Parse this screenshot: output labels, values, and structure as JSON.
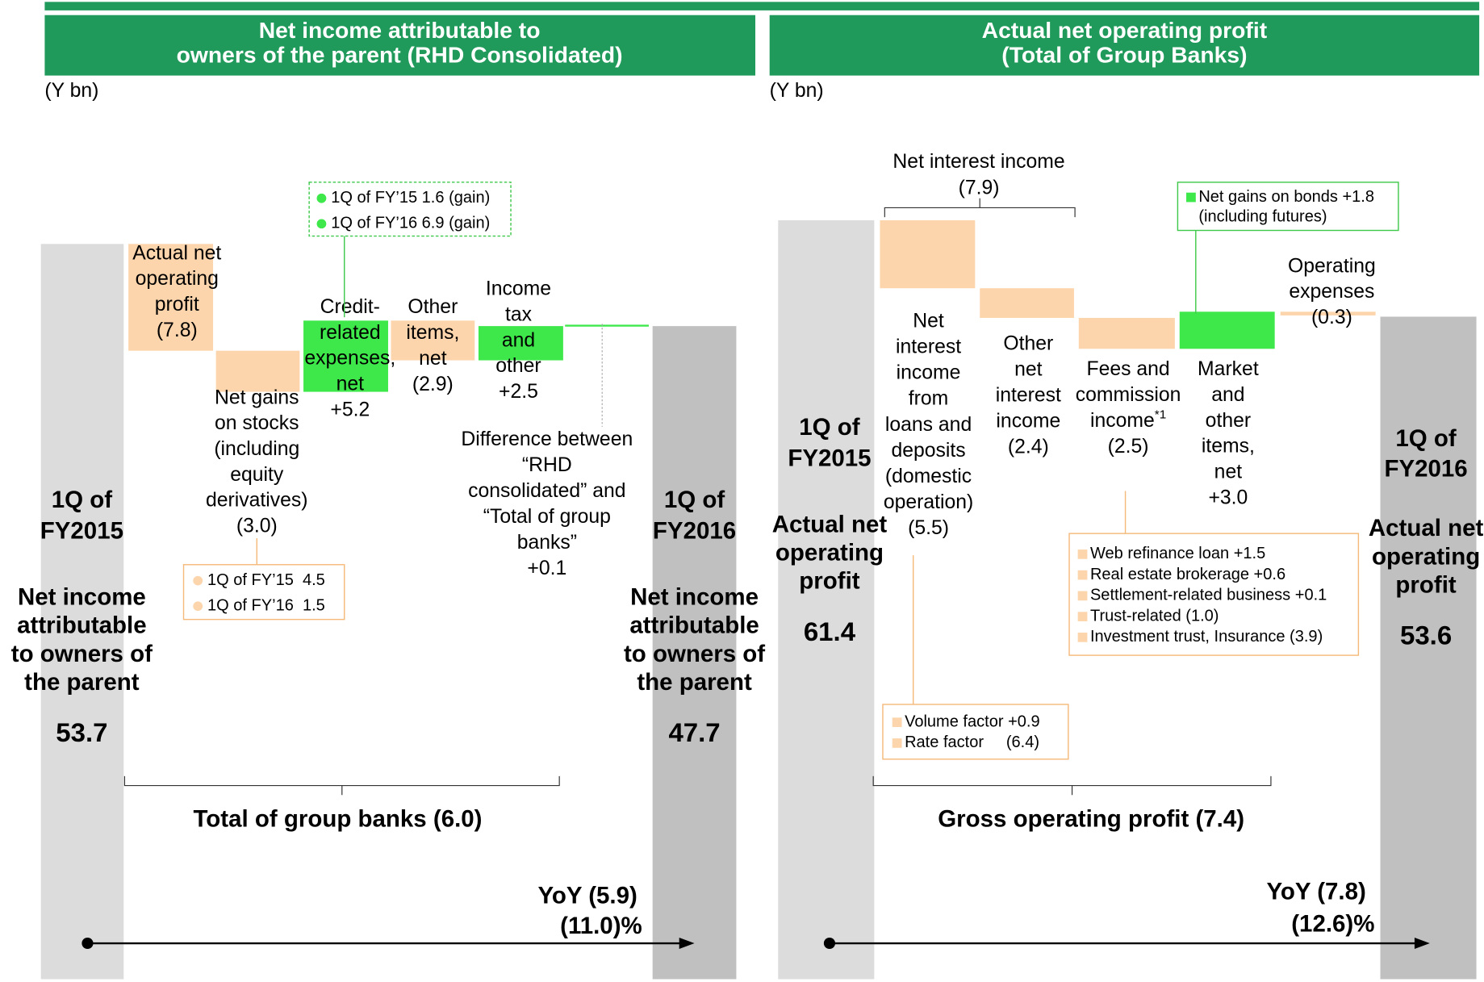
{
  "chart_data": [
    {
      "type": "waterfall",
      "title": [
        "Net income attributable to",
        "owners of the parent (RHD Consolidated)"
      ],
      "unit": "(Y bn)",
      "categories": [
        [
          "1Q of",
          "FY2015"
        ],
        [
          "Actual net",
          "operating",
          "profit"
        ],
        [
          "Net gains",
          "on stocks",
          "(including",
          "equity",
          "derivatives)"
        ],
        [
          "Credit-",
          "related",
          "expenses,",
          "net"
        ],
        [
          "Other",
          "items,",
          "net"
        ],
        [
          "Income",
          "tax",
          "and",
          "other"
        ],
        [
          "Difference between",
          "“RHD",
          "consolidated” and",
          "“Total of group",
          "banks”"
        ],
        [
          "1Q of",
          "FY2016"
        ]
      ],
      "measures": [
        "total",
        "relative",
        "relative",
        "relative",
        "relative",
        "relative",
        "relative",
        "total"
      ],
      "values": [
        53.7,
        -7.8,
        -3.0,
        5.2,
        -2.9,
        2.5,
        0.1,
        47.7
      ],
      "value_labels": [
        "53.7",
        "(7.8)",
        "(3.0)",
        "+5.2",
        "(2.9)",
        "+2.5",
        "+0.1",
        "47.7"
      ],
      "total_caption": [
        "Net income",
        "attributable",
        "to owners of",
        "the parent"
      ],
      "colors": {
        "start": "#dcdcdc",
        "end": "#c0c0c0",
        "increase": "#3ee84a",
        "decrease": "#fdd5ac"
      },
      "callouts": [
        {
          "lines": [
            "1Q of FY’15 1.6 (gain)",
            "1Q of FY’16 6.9 (gain)"
          ]
        },
        {
          "lines": [
            "1Q of FY’15  4.5",
            "1Q of FY’16  1.5"
          ]
        }
      ],
      "braces": [
        "Total of group banks (6.0)"
      ],
      "yoy": [
        "YoY (5.9)",
        "(11.0)%"
      ]
    },
    {
      "type": "waterfall",
      "title": [
        "Actual net operating profit",
        "(Total of Group Banks)"
      ],
      "unit": "(Y bn)",
      "categories": [
        [
          "1Q of",
          "FY2015"
        ],
        [
          "Net",
          "interest",
          "income",
          "from",
          "loans and",
          "deposits",
          "(domestic",
          "operation)"
        ],
        [
          "Other",
          "net",
          "interest",
          "income"
        ],
        [
          "Fees and",
          "commission",
          "income*1"
        ],
        [
          "Market",
          "and",
          "other",
          "items,",
          "net"
        ],
        [
          "Operating",
          "expenses"
        ],
        [
          "1Q of",
          "FY2016"
        ]
      ],
      "measures": [
        "total",
        "relative",
        "relative",
        "relative",
        "relative",
        "relative",
        "total"
      ],
      "values": [
        61.4,
        -5.5,
        -2.4,
        -2.5,
        3.0,
        -0.3,
        53.6
      ],
      "value_labels": [
        "61.4",
        "(5.5)",
        "(2.4)",
        "(2.5)",
        "+3.0",
        "(0.3)",
        "53.6"
      ],
      "total_caption": [
        "Actual net",
        "operating",
        "profit"
      ],
      "colors": {
        "start": "#dcdcdc",
        "end": "#c0c0c0",
        "increase": "#3ee84a",
        "decrease": "#fdd5ac"
      },
      "callouts": [
        {
          "lines": [
            "Net gains on bonds +1.8",
            "(including futures)"
          ]
        },
        {
          "lines": [
            "Web refinance loan +1.5",
            "Real estate brokerage +0.6",
            "Settlement-related business +0.1",
            "Trust-related (1.0)",
            "Investment trust, Insurance (3.9)"
          ]
        },
        {
          "lines": [
            "Volume factor +0.9",
            "Rate factor     (6.4)"
          ]
        }
      ],
      "braces": [
        "Net interest income",
        "(7.9)",
        "Gross operating profit (7.4)"
      ],
      "yoy": [
        "YoY (7.8)",
        "(12.6)%"
      ]
    }
  ]
}
